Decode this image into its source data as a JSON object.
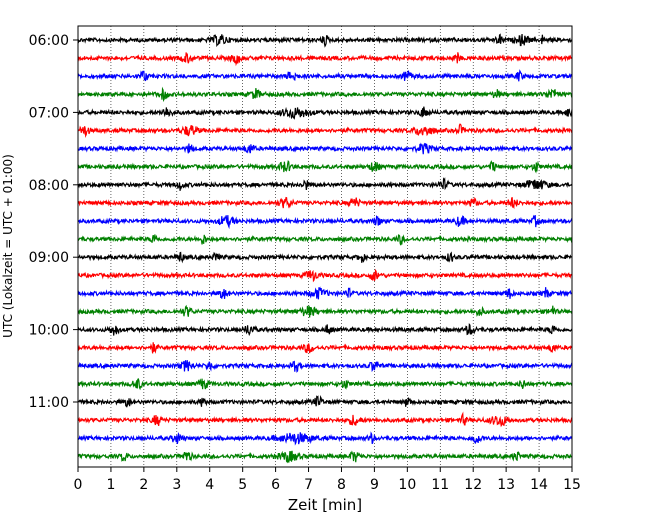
{
  "chart_data": {
    "type": "line",
    "title": "",
    "xlabel": "Zeit  [min]",
    "ylabel": "UTC (Lokalzeit = UTC + 01:00)",
    "xlim": [
      0,
      15
    ],
    "x_ticks": [
      "0",
      "1",
      "2",
      "3",
      "4",
      "5",
      "6",
      "7",
      "8",
      "9",
      "10",
      "11",
      "12",
      "13",
      "14",
      "15"
    ],
    "x_tick_values": [
      0,
      1,
      2,
      3,
      4,
      5,
      6,
      7,
      8,
      9,
      10,
      11,
      12,
      13,
      14,
      15
    ],
    "y_ticks": [
      "06:00",
      "07:00",
      "08:00",
      "09:00",
      "10:00",
      "11:00"
    ],
    "grid": "vertical-dotted",
    "trace_interval_minutes": 15,
    "colors": [
      "#000000",
      "#ff0000",
      "#0000ff",
      "#008000"
    ],
    "series": [
      {
        "start": "06:00",
        "color": "#000000",
        "bursts": [
          [
            4.3,
            0.5
          ],
          [
            7.5,
            0.2
          ],
          [
            12.8,
            0.2
          ],
          [
            13.5,
            0.4
          ],
          [
            14.1,
            0.1
          ]
        ]
      },
      {
        "start": "06:15",
        "color": "#ff0000",
        "bursts": [
          [
            3.3,
            0.3
          ],
          [
            4.8,
            0.3
          ],
          [
            11.5,
            0.2
          ]
        ]
      },
      {
        "start": "06:30",
        "color": "#0000ff",
        "bursts": [
          [
            2.0,
            0.3
          ],
          [
            6.5,
            0.3
          ],
          [
            10.0,
            0.3
          ],
          [
            13.4,
            0.2
          ]
        ]
      },
      {
        "start": "06:45",
        "color": "#008000",
        "bursts": [
          [
            2.6,
            0.3
          ],
          [
            5.4,
            0.3
          ],
          [
            12.7,
            0.2
          ],
          [
            14.4,
            0.4
          ]
        ]
      },
      {
        "start": "07:00",
        "color": "#000000",
        "bursts": [
          [
            6.6,
            0.9
          ],
          [
            2.7,
            0.3
          ],
          [
            10.5,
            0.3
          ],
          [
            14.9,
            0.2
          ]
        ]
      },
      {
        "start": "07:15",
        "color": "#ff0000",
        "bursts": [
          [
            0.2,
            0.3
          ],
          [
            3.4,
            0.5
          ],
          [
            10.5,
            0.6
          ],
          [
            11.6,
            0.2
          ]
        ]
      },
      {
        "start": "07:30",
        "color": "#0000ff",
        "bursts": [
          [
            3.4,
            0.2
          ],
          [
            5.2,
            0.3
          ],
          [
            10.5,
            0.4
          ]
        ]
      },
      {
        "start": "07:45",
        "color": "#008000",
        "bursts": [
          [
            6.3,
            0.4
          ],
          [
            9.0,
            0.3
          ],
          [
            12.6,
            0.2
          ],
          [
            13.9,
            0.2
          ]
        ]
      },
      {
        "start": "08:00",
        "color": "#000000",
        "bursts": [
          [
            3.1,
            0.2
          ],
          [
            6.9,
            0.2
          ],
          [
            11.1,
            0.3
          ],
          [
            13.9,
            0.7
          ]
        ]
      },
      {
        "start": "08:15",
        "color": "#ff0000",
        "bursts": [
          [
            6.3,
            0.4
          ],
          [
            8.4,
            0.3
          ],
          [
            12.0,
            0.2
          ],
          [
            13.2,
            0.3
          ]
        ]
      },
      {
        "start": "08:30",
        "color": "#0000ff",
        "bursts": [
          [
            4.5,
            0.5
          ],
          [
            9.1,
            0.2
          ],
          [
            11.6,
            0.3
          ],
          [
            13.9,
            0.2
          ]
        ]
      },
      {
        "start": "08:45",
        "color": "#008000",
        "bursts": [
          [
            2.3,
            0.2
          ],
          [
            3.8,
            0.2
          ],
          [
            9.8,
            0.2
          ]
        ]
      },
      {
        "start": "09:00",
        "color": "#000000",
        "bursts": [
          [
            3.1,
            0.2
          ],
          [
            4.2,
            0.2
          ],
          [
            8.6,
            0.2
          ],
          [
            11.3,
            0.2
          ]
        ]
      },
      {
        "start": "09:15",
        "color": "#ff0000",
        "bursts": [
          [
            7.1,
            0.4
          ],
          [
            9.0,
            0.3
          ]
        ]
      },
      {
        "start": "09:30",
        "color": "#0000ff",
        "bursts": [
          [
            4.4,
            0.3
          ],
          [
            7.3,
            0.5
          ],
          [
            8.2,
            0.2
          ],
          [
            13.1,
            0.2
          ],
          [
            14.2,
            0.2
          ]
        ]
      },
      {
        "start": "09:45",
        "color": "#008000",
        "bursts": [
          [
            3.3,
            0.3
          ],
          [
            7.0,
            0.5
          ],
          [
            12.2,
            0.2
          ],
          [
            14.4,
            0.2
          ]
        ]
      },
      {
        "start": "10:00",
        "color": "#000000",
        "bursts": [
          [
            1.1,
            0.3
          ],
          [
            5.2,
            0.3
          ],
          [
            7.6,
            0.2
          ],
          [
            11.9,
            0.3
          ],
          [
            14.4,
            0.2
          ]
        ]
      },
      {
        "start": "10:15",
        "color": "#ff0000",
        "bursts": [
          [
            2.3,
            0.2
          ],
          [
            7.0,
            0.3
          ],
          [
            14.4,
            0.2
          ]
        ]
      },
      {
        "start": "10:30",
        "color": "#0000ff",
        "bursts": [
          [
            3.3,
            0.4
          ],
          [
            4.0,
            0.2
          ],
          [
            6.6,
            0.3
          ],
          [
            9.0,
            0.3
          ]
        ]
      },
      {
        "start": "10:45",
        "color": "#008000",
        "bursts": [
          [
            1.8,
            0.3
          ],
          [
            3.8,
            0.3
          ],
          [
            8.1,
            0.2
          ],
          [
            13.5,
            0.2
          ]
        ]
      },
      {
        "start": "11:00",
        "color": "#000000",
        "bursts": [
          [
            1.5,
            0.2
          ],
          [
            3.8,
            0.2
          ],
          [
            7.3,
            0.3
          ],
          [
            10.0,
            0.2
          ]
        ]
      },
      {
        "start": "11:15",
        "color": "#ff0000",
        "bursts": [
          [
            2.4,
            0.3
          ],
          [
            8.4,
            0.4
          ],
          [
            11.7,
            0.2
          ],
          [
            12.8,
            0.6
          ]
        ]
      },
      {
        "start": "11:30",
        "color": "#0000ff",
        "bursts": [
          [
            3.0,
            0.3
          ],
          [
            6.6,
            1.1
          ],
          [
            8.9,
            0.2
          ],
          [
            12.1,
            0.3
          ]
        ]
      },
      {
        "start": "11:45",
        "color": "#008000",
        "bursts": [
          [
            1.4,
            0.2
          ],
          [
            3.3,
            0.3
          ],
          [
            6.4,
            0.6
          ],
          [
            8.4,
            0.3
          ],
          [
            13.3,
            0.2
          ]
        ]
      }
    ]
  }
}
